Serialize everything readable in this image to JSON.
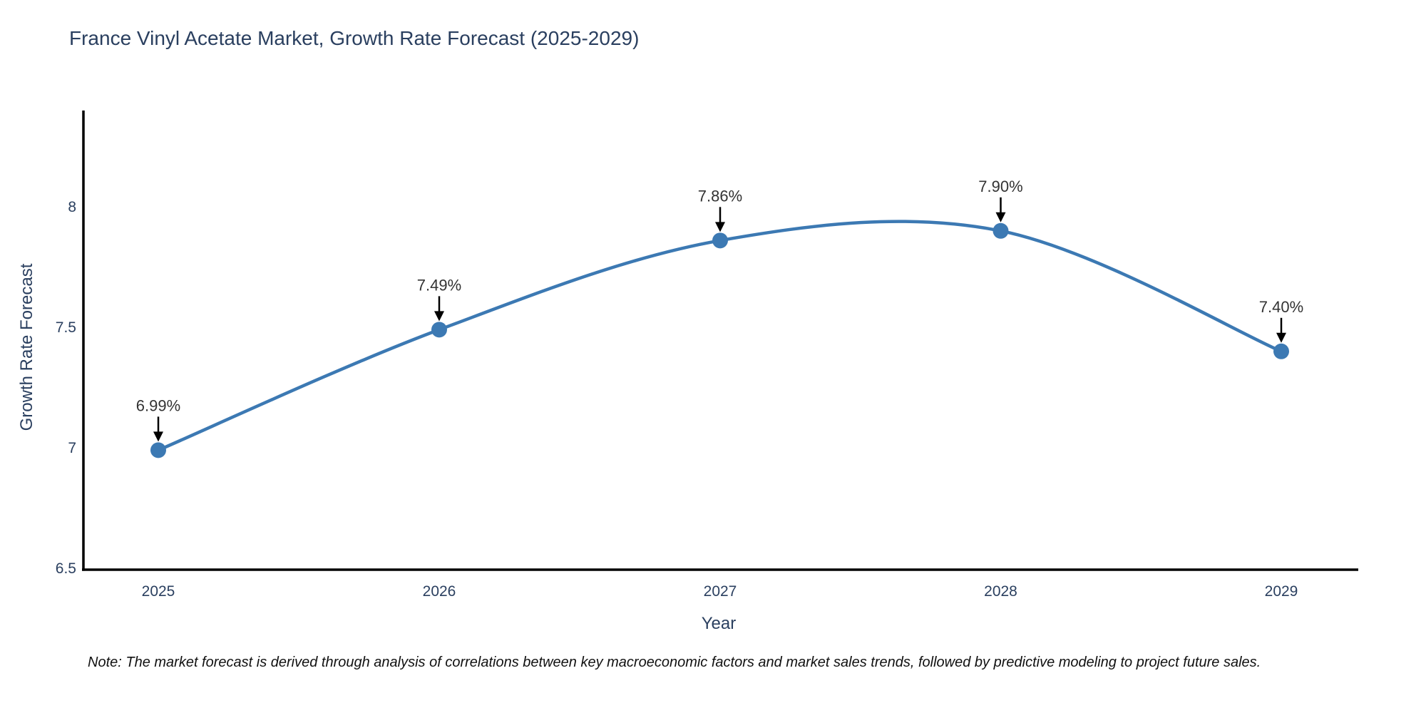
{
  "chart_data": {
    "type": "line",
    "line_shape": "spline",
    "title": "France Vinyl Acetate Market, Growth Rate Forecast (2025-2029)",
    "xlabel": "Year",
    "ylabel": "Growth Rate Forecast",
    "categories": [
      "2025",
      "2026",
      "2027",
      "2028",
      "2029"
    ],
    "values": [
      6.99,
      7.49,
      7.86,
      7.9,
      7.4
    ],
    "point_labels": [
      "6.99%",
      "7.49%",
      "7.86%",
      "7.90%",
      "7.40%"
    ],
    "y_ticks": [
      6.5,
      7,
      7.5,
      8
    ],
    "ylim": [
      6.5,
      8.4
    ],
    "grid": false,
    "legend_position": "none",
    "marker_annotation_style": "black-down-arrow",
    "note": "Note: The market forecast is derived through analysis of correlations between key macroeconomic factors and market sales trends, followed by predictive modeling to project future sales.",
    "colors": {
      "line": "#3c79b3",
      "marker": "#3c79b3",
      "title_text": "#2a3f5f",
      "axis_text": "#2a3f5f",
      "annotation_text": "#333333",
      "annotation_arrow": "#000000",
      "axis_line": "#000000",
      "note_text": "#111111",
      "background": "#ffffff"
    }
  }
}
